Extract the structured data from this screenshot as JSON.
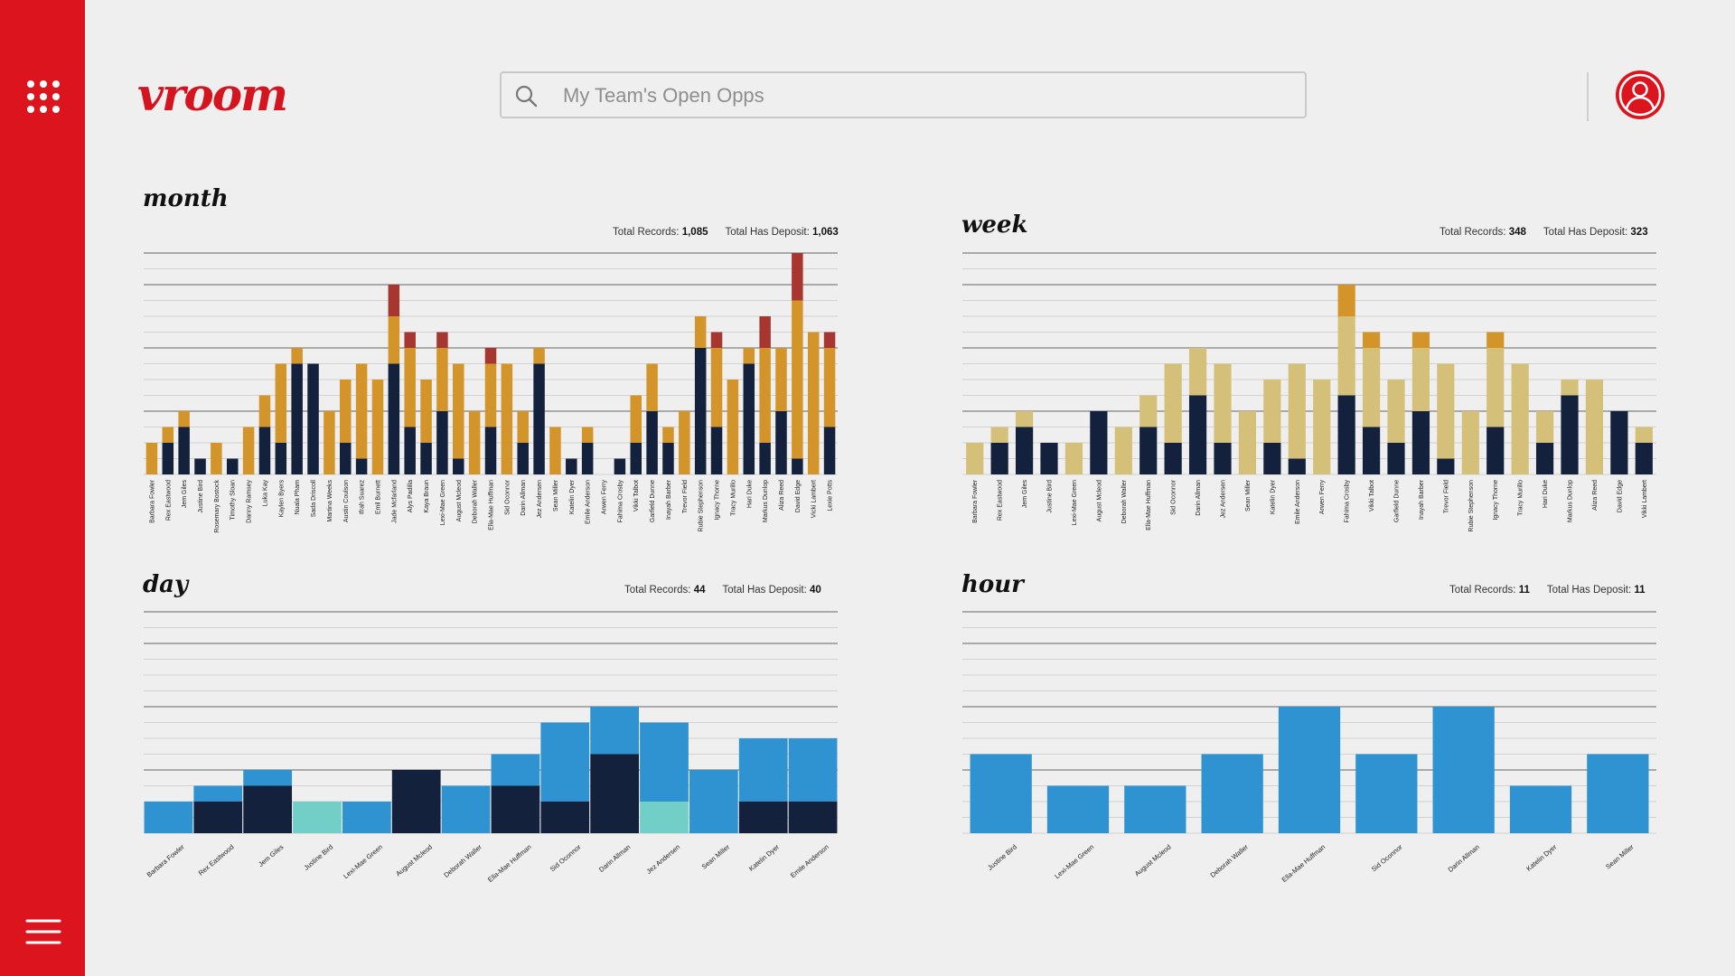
{
  "app": {
    "logo_text": "vroom",
    "apps_icon": "grid-apps-icon",
    "menu_icon": "hamburger-menu-icon",
    "user_icon": "user-avatar-icon"
  },
  "search": {
    "placeholder": "My Team's Open Opps",
    "icon": "search-icon"
  },
  "colors": {
    "brand_red": "#dc141e",
    "navy": "#14213d",
    "orange": "#d3952a",
    "dark_red": "#a83630",
    "tan": "#d5c07a",
    "dark_orange": "#d3952a",
    "blue": "#2e93d0",
    "teal": "#72cfc8"
  },
  "labels": {
    "total_records": "Total Records:",
    "total_has_deposit": "Total Has Deposit:"
  },
  "panels": {
    "month": {
      "title": "month",
      "total_records": "1,085",
      "total_has_deposit": "1,063"
    },
    "week": {
      "title": "week",
      "total_records": "348",
      "total_has_deposit": "323"
    },
    "day": {
      "title": "day",
      "total_records": "44",
      "total_has_deposit": "40"
    },
    "hour": {
      "title": "hour",
      "total_records": "11",
      "total_has_deposit": "11"
    }
  },
  "chart_data": [
    {
      "id": "month",
      "type": "bar",
      "stacked": true,
      "ylim": [
        0,
        14
      ],
      "categories": [
        "Barbara Fowler",
        "Rex Eastwood",
        "Jem Giles",
        "Justine Bird",
        "Rosemary Bostock",
        "Timothy Sloan",
        "Danny Ramsey",
        "Luka Kay",
        "Kaylen Byers",
        "Nuala Pham",
        "Sada Driscoll",
        "Martina Weeks",
        "Austin Coulson",
        "Ifrah Suarez",
        "Emil Burnett",
        "Jade Mcfarland",
        "Alys Padilla",
        "Kaya Braun",
        "Lexi-Mae Green",
        "August Mcleod",
        "Deborah Waller",
        "Ella-Mae Huffman",
        "Sid Oconnor",
        "Darin Allman",
        "Jez Andersen",
        "Sean Miller",
        "Katelin Dyer",
        "Emile Anderson",
        "Arwen Ferry",
        "Fahima Crosby",
        "Vikki Talbot",
        "Garfield Dunne",
        "Inayah Barber",
        "Trevor Field",
        "Rubie Stephenson",
        "Ignacy Thorne",
        "Tracy Murillo",
        "Hari Duke",
        "Markus Dunlop",
        "Aliza Reed",
        "David Edge",
        "Vicki Lambert",
        "Lexie Potts"
      ],
      "series": [
        {
          "name": "navy",
          "color": "#14213d",
          "values": [
            0,
            2,
            3,
            1,
            0,
            1,
            0,
            3,
            2,
            7,
            7,
            0,
            2,
            1,
            0,
            7,
            3,
            2,
            4,
            1,
            0,
            3,
            0,
            2,
            7,
            0,
            1,
            2,
            0,
            1,
            2,
            4,
            2,
            0,
            8,
            3,
            0,
            7,
            2,
            4,
            1,
            0,
            3
          ]
        },
        {
          "name": "orange",
          "color": "#d3952a",
          "values": [
            2,
            1,
            1,
            0,
            2,
            0,
            3,
            2,
            5,
            1,
            0,
            4,
            4,
            6,
            6,
            3,
            5,
            4,
            4,
            6,
            4,
            4,
            7,
            2,
            1,
            3,
            0,
            1,
            0,
            0,
            3,
            3,
            1,
            4,
            2,
            5,
            6,
            1,
            6,
            4,
            10,
            9,
            5
          ]
        },
        {
          "name": "red",
          "color": "#a83630",
          "values": [
            0,
            0,
            0,
            0,
            0,
            0,
            0,
            0,
            0,
            0,
            0,
            0,
            0,
            0,
            0,
            2,
            1,
            0,
            1,
            0,
            0,
            1,
            0,
            0,
            0,
            0,
            0,
            0,
            0,
            0,
            0,
            0,
            0,
            0,
            0,
            1,
            0,
            0,
            2,
            0,
            3,
            0,
            1
          ]
        }
      ]
    },
    {
      "id": "week",
      "type": "bar",
      "stacked": true,
      "ylim": [
        0,
        14
      ],
      "categories": [
        "Barbara Fowler",
        "Rex Eastwood",
        "Jem Giles",
        "Justine Bird",
        "Lexi-Mae Green",
        "August Mcleod",
        "Deborah Waller",
        "Ella-Mae Huffman",
        "Sid Oconnor",
        "Darin Allman",
        "Jez Andersen",
        "Sean Miller",
        "Katelin Dyer",
        "Emile Anderson",
        "Arwen Ferry",
        "Fahima Crosby",
        "Vikki Talbot",
        "Garfield Dunne",
        "Inayah Barber",
        "Trevor Field",
        "Rubie Stephenson",
        "Ignacy Thorne",
        "Tracy Murillo",
        "Hari Duke",
        "Markus Dunlop",
        "Aliza Reed",
        "David Edge",
        "Vikki Lambert"
      ],
      "series": [
        {
          "name": "navy",
          "color": "#14213d",
          "values": [
            0,
            2,
            3,
            2,
            0,
            4,
            0,
            3,
            2,
            5,
            2,
            0,
            2,
            1,
            0,
            5,
            3,
            2,
            4,
            1,
            0,
            3,
            0,
            2,
            5,
            0,
            4,
            2
          ]
        },
        {
          "name": "tan",
          "color": "#d5c07a",
          "values": [
            2,
            1,
            1,
            0,
            2,
            0,
            3,
            2,
            5,
            3,
            5,
            4,
            4,
            6,
            6,
            5,
            5,
            4,
            4,
            6,
            4,
            5,
            7,
            2,
            1,
            6,
            0,
            1
          ]
        },
        {
          "name": "orange",
          "color": "#d3952a",
          "values": [
            0,
            0,
            0,
            0,
            0,
            0,
            0,
            0,
            0,
            0,
            0,
            0,
            0,
            0,
            0,
            2,
            1,
            0,
            1,
            0,
            0,
            1,
            0,
            0,
            0,
            0,
            0,
            0
          ]
        }
      ]
    },
    {
      "id": "day",
      "type": "bar",
      "stacked": true,
      "ylim": [
        0,
        14
      ],
      "categories": [
        "Barbara Fowler",
        "Rex Eastwood",
        "Jem Giles",
        "Justine Bird",
        "Lexi-Mae Green",
        "August Mcleod",
        "Deborah Waller",
        "Ella-Mae Huffman",
        "Sid Oconnor",
        "Darin Allman",
        "Jez Andersen",
        "Sean Miller",
        "Katelin Dyer",
        "Emile Anderson"
      ],
      "series": [
        {
          "name": "navy",
          "color": "#14213d",
          "values": [
            0,
            2,
            3,
            0,
            0,
            4,
            0,
            3,
            2,
            5,
            0,
            0,
            2,
            2
          ]
        },
        {
          "name": "teal",
          "color": "#72cfc8",
          "values": [
            0,
            0,
            0,
            2,
            0,
            0,
            0,
            0,
            0,
            0,
            2,
            0,
            0,
            0
          ]
        },
        {
          "name": "blue",
          "color": "#2e93d0",
          "values": [
            2,
            1,
            1,
            0,
            2,
            0,
            3,
            2,
            5,
            3,
            5,
            4,
            4,
            4
          ]
        }
      ]
    },
    {
      "id": "hour",
      "type": "bar",
      "stacked": false,
      "ylim": [
        0,
        14
      ],
      "categories": [
        "Justine Bird",
        "Lexi-Mae Green",
        "August Mcleod",
        "Deborah Waller",
        "Ella-Mae Huffman",
        "Sid Oconnor",
        "Darin Allman",
        "Katelin Dyer",
        "Sean Miller"
      ],
      "series": [
        {
          "name": "blue",
          "color": "#2e93d0",
          "values": [
            5,
            3,
            3,
            5,
            8,
            5,
            8,
            3,
            5
          ]
        }
      ]
    }
  ]
}
